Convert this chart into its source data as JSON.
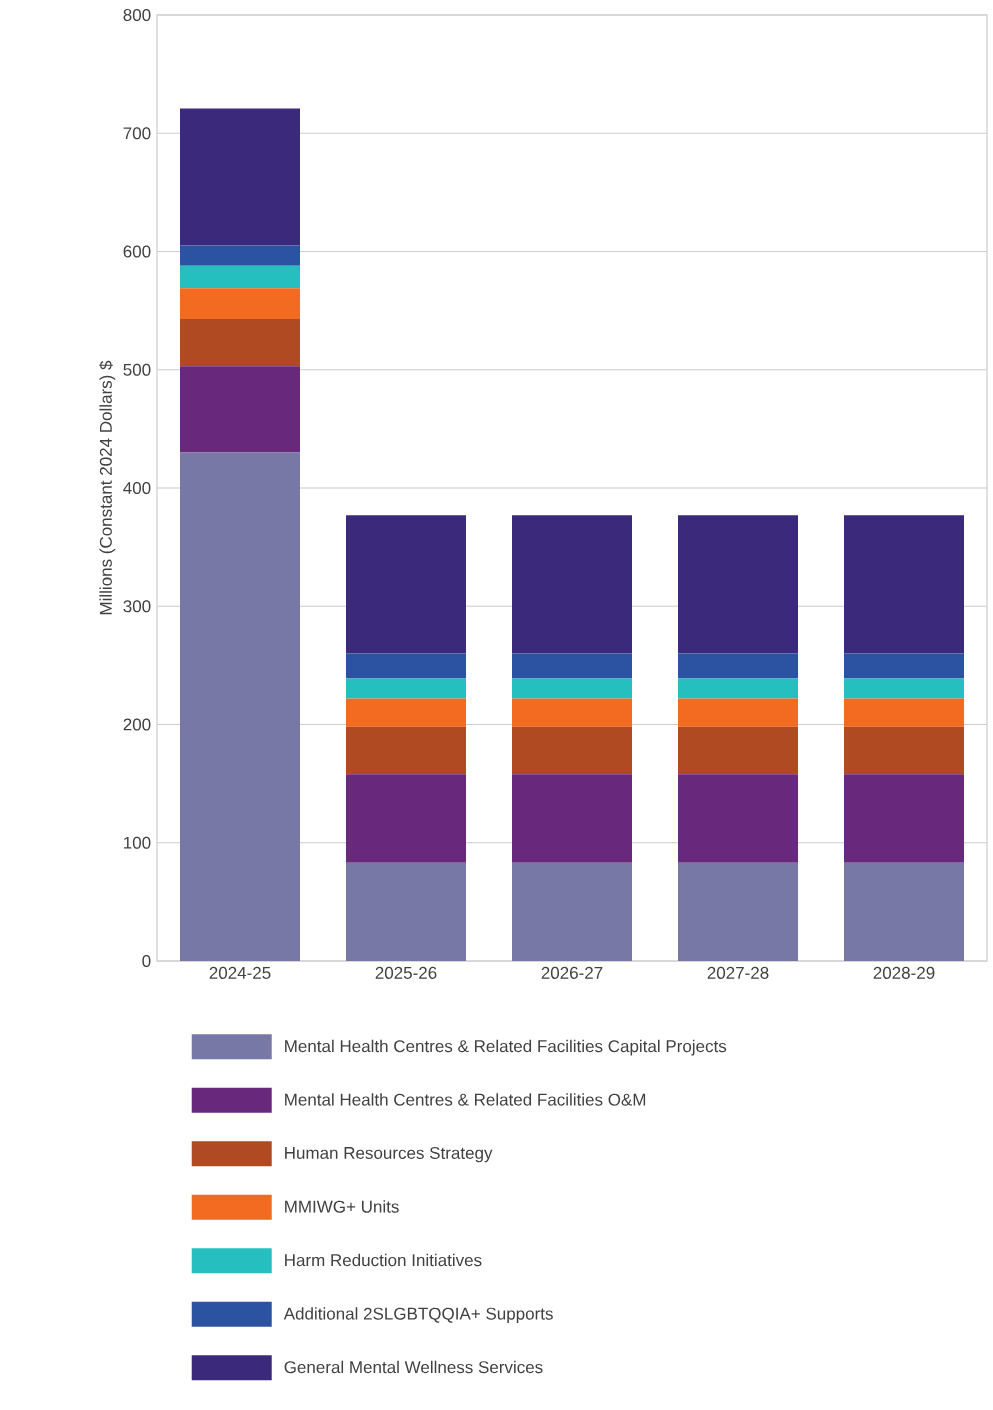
{
  "chart_data": {
    "type": "bar",
    "stacked": true,
    "ylabel": "Millions (Constant 2024 Dollars) $",
    "categories": [
      "2024-25",
      "2025-26",
      "2026-27",
      "2027-28",
      "2028-29"
    ],
    "ylim": [
      0,
      800
    ],
    "yticks": [
      0,
      100,
      200,
      300,
      400,
      500,
      600,
      700,
      800
    ],
    "grid": "y",
    "legend": "bottom",
    "series": [
      {
        "name": "Mental Health Centres & Related Facilities Capital Projects",
        "color": "#7878a6",
        "values": [
          430,
          83,
          83,
          83,
          83
        ]
      },
      {
        "name": "Mental Health Centres & Related Facilities O&M",
        "color": "#68287c",
        "values": [
          73,
          75,
          75,
          75,
          75
        ]
      },
      {
        "name": "Human Resources Strategy",
        "color": "#b04a22",
        "values": [
          40,
          40,
          40,
          40,
          40
        ]
      },
      {
        "name": "MMIWG+ Units",
        "color": "#f26b21",
        "values": [
          26,
          24,
          24,
          24,
          24
        ]
      },
      {
        "name": "Harm Reduction Initiatives",
        "color": "#26bfbf",
        "values": [
          19,
          17,
          17,
          17,
          17
        ]
      },
      {
        "name": "Additional 2SLGBTQQIA+ Supports",
        "color": "#2b53a1",
        "values": [
          17,
          21,
          21,
          21,
          21
        ]
      },
      {
        "name": "General Mental Wellness Services",
        "color": "#3b2a7b",
        "values": [
          116,
          117,
          117,
          117,
          117
        ]
      }
    ]
  }
}
